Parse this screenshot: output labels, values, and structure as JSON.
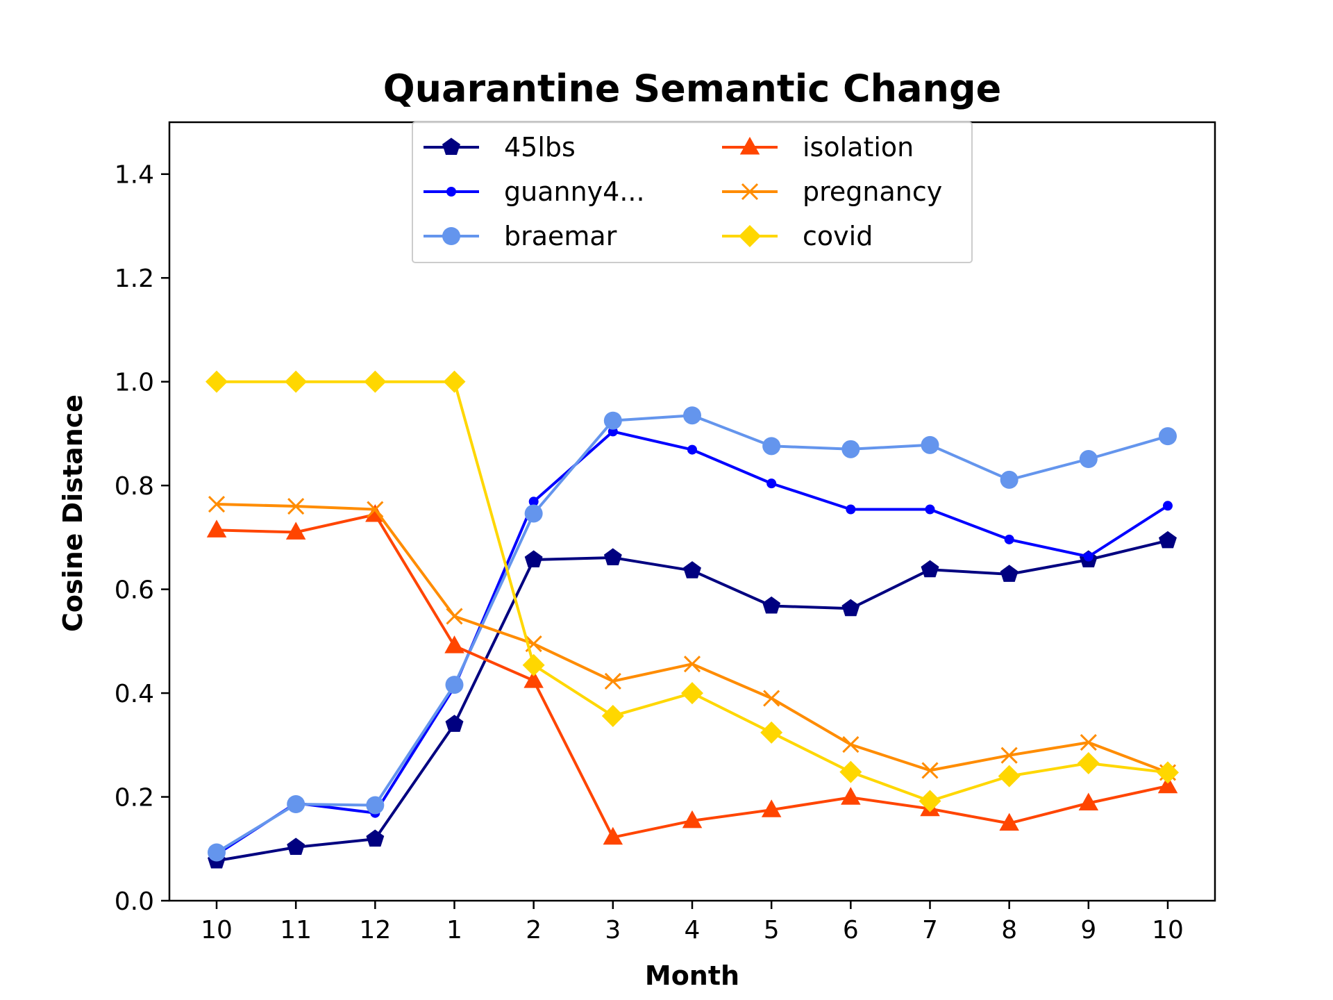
{
  "chart_data": {
    "type": "line",
    "title": "Quarantine Semantic Change",
    "xlabel": "Month",
    "ylabel": "Cosine Distance",
    "categories": [
      "10",
      "11",
      "12",
      "1",
      "2",
      "3",
      "4",
      "5",
      "6",
      "7",
      "8",
      "9",
      "10"
    ],
    "ylim": [
      0,
      1.5
    ],
    "yticks": [
      "0.0",
      "0.2",
      "0.4",
      "0.6",
      "0.8",
      "1.0",
      "1.2",
      "1.4"
    ],
    "grid": false,
    "legend_position": "top-center",
    "series": [
      {
        "name": "45lbs",
        "color": "#000080",
        "marker": "pentagon",
        "values": [
          0.077,
          0.103,
          0.119,
          0.34,
          0.657,
          0.661,
          0.636,
          0.568,
          0.563,
          0.638,
          0.629,
          0.657,
          0.694
        ]
      },
      {
        "name": "guanny4...",
        "color": "#0000ff",
        "marker": "dot",
        "values": [
          0.089,
          0.188,
          0.169,
          0.412,
          0.769,
          0.904,
          0.869,
          0.804,
          0.754,
          0.754,
          0.696,
          0.663,
          0.761
        ]
      },
      {
        "name": "braemar",
        "color": "#6495ed",
        "marker": "circle",
        "values": [
          0.093,
          0.186,
          0.184,
          0.416,
          0.746,
          0.925,
          0.935,
          0.876,
          0.87,
          0.878,
          0.811,
          0.851,
          0.895
        ]
      },
      {
        "name": "isolation",
        "color": "#ff4500",
        "marker": "triangle",
        "values": [
          0.714,
          0.71,
          0.744,
          0.491,
          0.424,
          0.122,
          0.154,
          0.175,
          0.199,
          0.177,
          0.149,
          0.188,
          0.221
        ]
      },
      {
        "name": "pregnancy",
        "color": "#ff8c00",
        "marker": "x",
        "values": [
          0.764,
          0.76,
          0.754,
          0.548,
          0.495,
          0.423,
          0.456,
          0.39,
          0.301,
          0.251,
          0.28,
          0.305,
          0.247
        ]
      },
      {
        "name": "covid",
        "color": "#ffd700",
        "marker": "diamond",
        "values": [
          1.0,
          1.0,
          1.0,
          1.0,
          0.454,
          0.356,
          0.4,
          0.324,
          0.248,
          0.192,
          0.24,
          0.265,
          0.247
        ]
      }
    ]
  }
}
